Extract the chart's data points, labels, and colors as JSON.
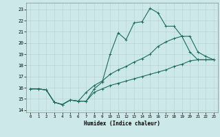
{
  "xlabel": "Humidex (Indice chaleur)",
  "background_color": "#cce8e8",
  "grid_color": "#b8d4d4",
  "line_color": "#1a6b5a",
  "xlim": [
    -0.5,
    23.5
  ],
  "ylim": [
    13.8,
    23.6
  ],
  "yticks": [
    14,
    15,
    16,
    17,
    18,
    19,
    20,
    21,
    22,
    23
  ],
  "xticks": [
    0,
    1,
    2,
    3,
    4,
    5,
    6,
    7,
    8,
    9,
    10,
    11,
    12,
    13,
    14,
    15,
    16,
    17,
    18,
    19,
    20,
    21,
    22,
    23
  ],
  "line1_x": [
    0,
    1,
    2,
    3,
    4,
    5,
    6,
    7,
    8,
    9,
    10,
    11,
    12,
    13,
    14,
    15,
    16,
    17,
    18,
    19,
    20,
    21,
    22,
    23
  ],
  "line1_y": [
    15.9,
    15.9,
    15.8,
    14.7,
    14.5,
    14.9,
    14.8,
    14.8,
    15.9,
    16.5,
    19.0,
    20.9,
    20.3,
    21.8,
    21.9,
    23.1,
    22.7,
    21.5,
    21.5,
    20.6,
    19.2,
    18.5,
    18.5,
    18.5
  ],
  "line2_x": [
    0,
    1,
    2,
    3,
    4,
    5,
    6,
    7,
    8,
    9,
    10,
    11,
    12,
    13,
    14,
    15,
    16,
    17,
    18,
    19,
    20,
    21,
    22,
    23
  ],
  "line2_y": [
    15.9,
    15.9,
    15.8,
    14.7,
    14.5,
    14.9,
    14.8,
    15.6,
    16.2,
    16.6,
    17.2,
    17.6,
    17.9,
    18.3,
    18.6,
    19.0,
    19.7,
    20.1,
    20.4,
    20.6,
    20.6,
    19.2,
    18.8,
    18.5
  ],
  "line3_x": [
    0,
    1,
    2,
    3,
    4,
    5,
    6,
    7,
    8,
    9,
    10,
    11,
    12,
    13,
    14,
    15,
    16,
    17,
    18,
    19,
    20,
    21,
    22,
    23
  ],
  "line3_y": [
    15.9,
    15.9,
    15.8,
    14.7,
    14.5,
    14.9,
    14.8,
    14.8,
    15.6,
    15.9,
    16.2,
    16.4,
    16.6,
    16.8,
    17.0,
    17.2,
    17.4,
    17.6,
    17.9,
    18.1,
    18.4,
    18.5,
    18.5,
    18.5
  ]
}
